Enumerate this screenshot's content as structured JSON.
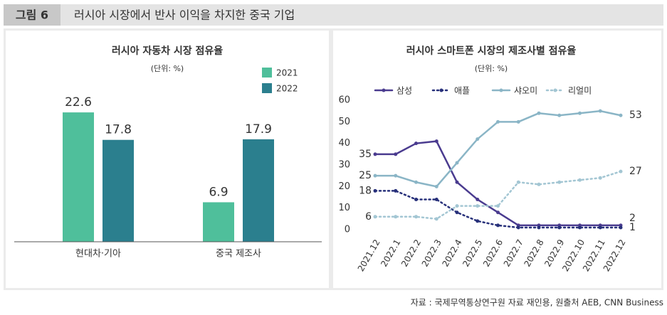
{
  "figure_label": "그림 6",
  "title": "러시아 시장에서 반사 이익을 차지한 중국 기업",
  "source": "자료 : 국제무역통상연구원 자료 재인용, 원출처 AEB, CNN Business",
  "chart_data": [
    {
      "type": "bar",
      "title": "러시아 자동차 시장 점유율",
      "subtitle": "(단위: %)",
      "categories": [
        "현대차·기아",
        "중국 제조사"
      ],
      "series": [
        {
          "name": "2021",
          "color": "#4fbf9b",
          "values": [
            22.6,
            6.9
          ]
        },
        {
          "name": "2022",
          "color": "#2b7f8e",
          "values": [
            17.8,
            17.9
          ]
        }
      ]
    },
    {
      "type": "line",
      "title": "러시아 스마트폰 시장의 제조사별 점유율",
      "subtitle": "(단위: %)",
      "categories": [
        "2021.12",
        "2022.1",
        "2022.2",
        "2022.3",
        "2022.4",
        "2022.5",
        "2022.6",
        "2022.7",
        "2022.8",
        "2022.9",
        "2022.10",
        "2022.11",
        "2022.12"
      ],
      "ylim": [
        0,
        60
      ],
      "yticks": [
        0,
        10,
        20,
        30,
        40,
        50,
        60
      ],
      "series": [
        {
          "name": "삼성",
          "color": "#4a3b8f",
          "style": "solid",
          "values": [
            35,
            35,
            40,
            41,
            22,
            14,
            8,
            2,
            2,
            2,
            2,
            2,
            2
          ]
        },
        {
          "name": "애플",
          "color": "#27307a",
          "style": "dotted",
          "values": [
            18,
            18,
            14,
            14,
            8,
            4,
            2,
            1,
            1,
            1,
            1,
            1,
            1
          ]
        },
        {
          "name": "샤오미",
          "color": "#8ab5c6",
          "style": "solid",
          "values": [
            25,
            25,
            22,
            20,
            31,
            42,
            50,
            50,
            54,
            53,
            54,
            55,
            53
          ]
        },
        {
          "name": "리얼미",
          "color": "#a3c6d3",
          "style": "dotted",
          "values": [
            6,
            6,
            6,
            5,
            11,
            11,
            11,
            22,
            21,
            22,
            23,
            24,
            27
          ]
        }
      ]
    }
  ]
}
